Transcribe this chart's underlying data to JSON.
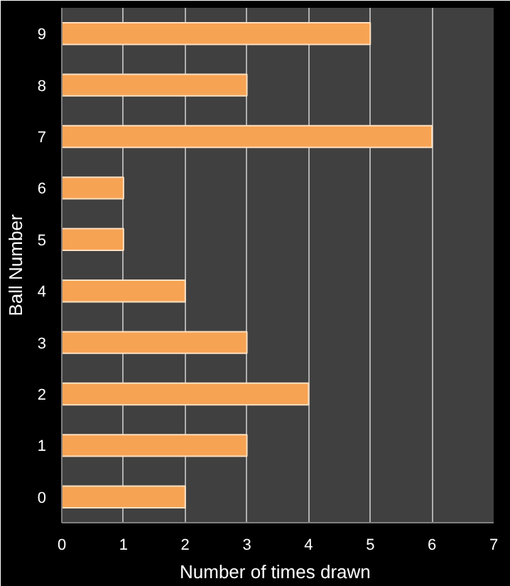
{
  "chart_data": {
    "type": "bar",
    "orientation": "horizontal",
    "xlabel": "Number  of times drawn",
    "ylabel": "Ball Number",
    "categories": [
      "9",
      "8",
      "7",
      "6",
      "5",
      "4",
      "3",
      "2",
      "1",
      "0"
    ],
    "values": [
      5,
      3,
      6,
      1,
      1,
      2,
      3,
      4,
      3,
      2
    ],
    "color": "#f7a354",
    "xlim": [
      0,
      7
    ],
    "xticks": [
      0,
      1,
      2,
      3,
      4,
      5,
      6,
      7
    ],
    "grid": "x"
  }
}
